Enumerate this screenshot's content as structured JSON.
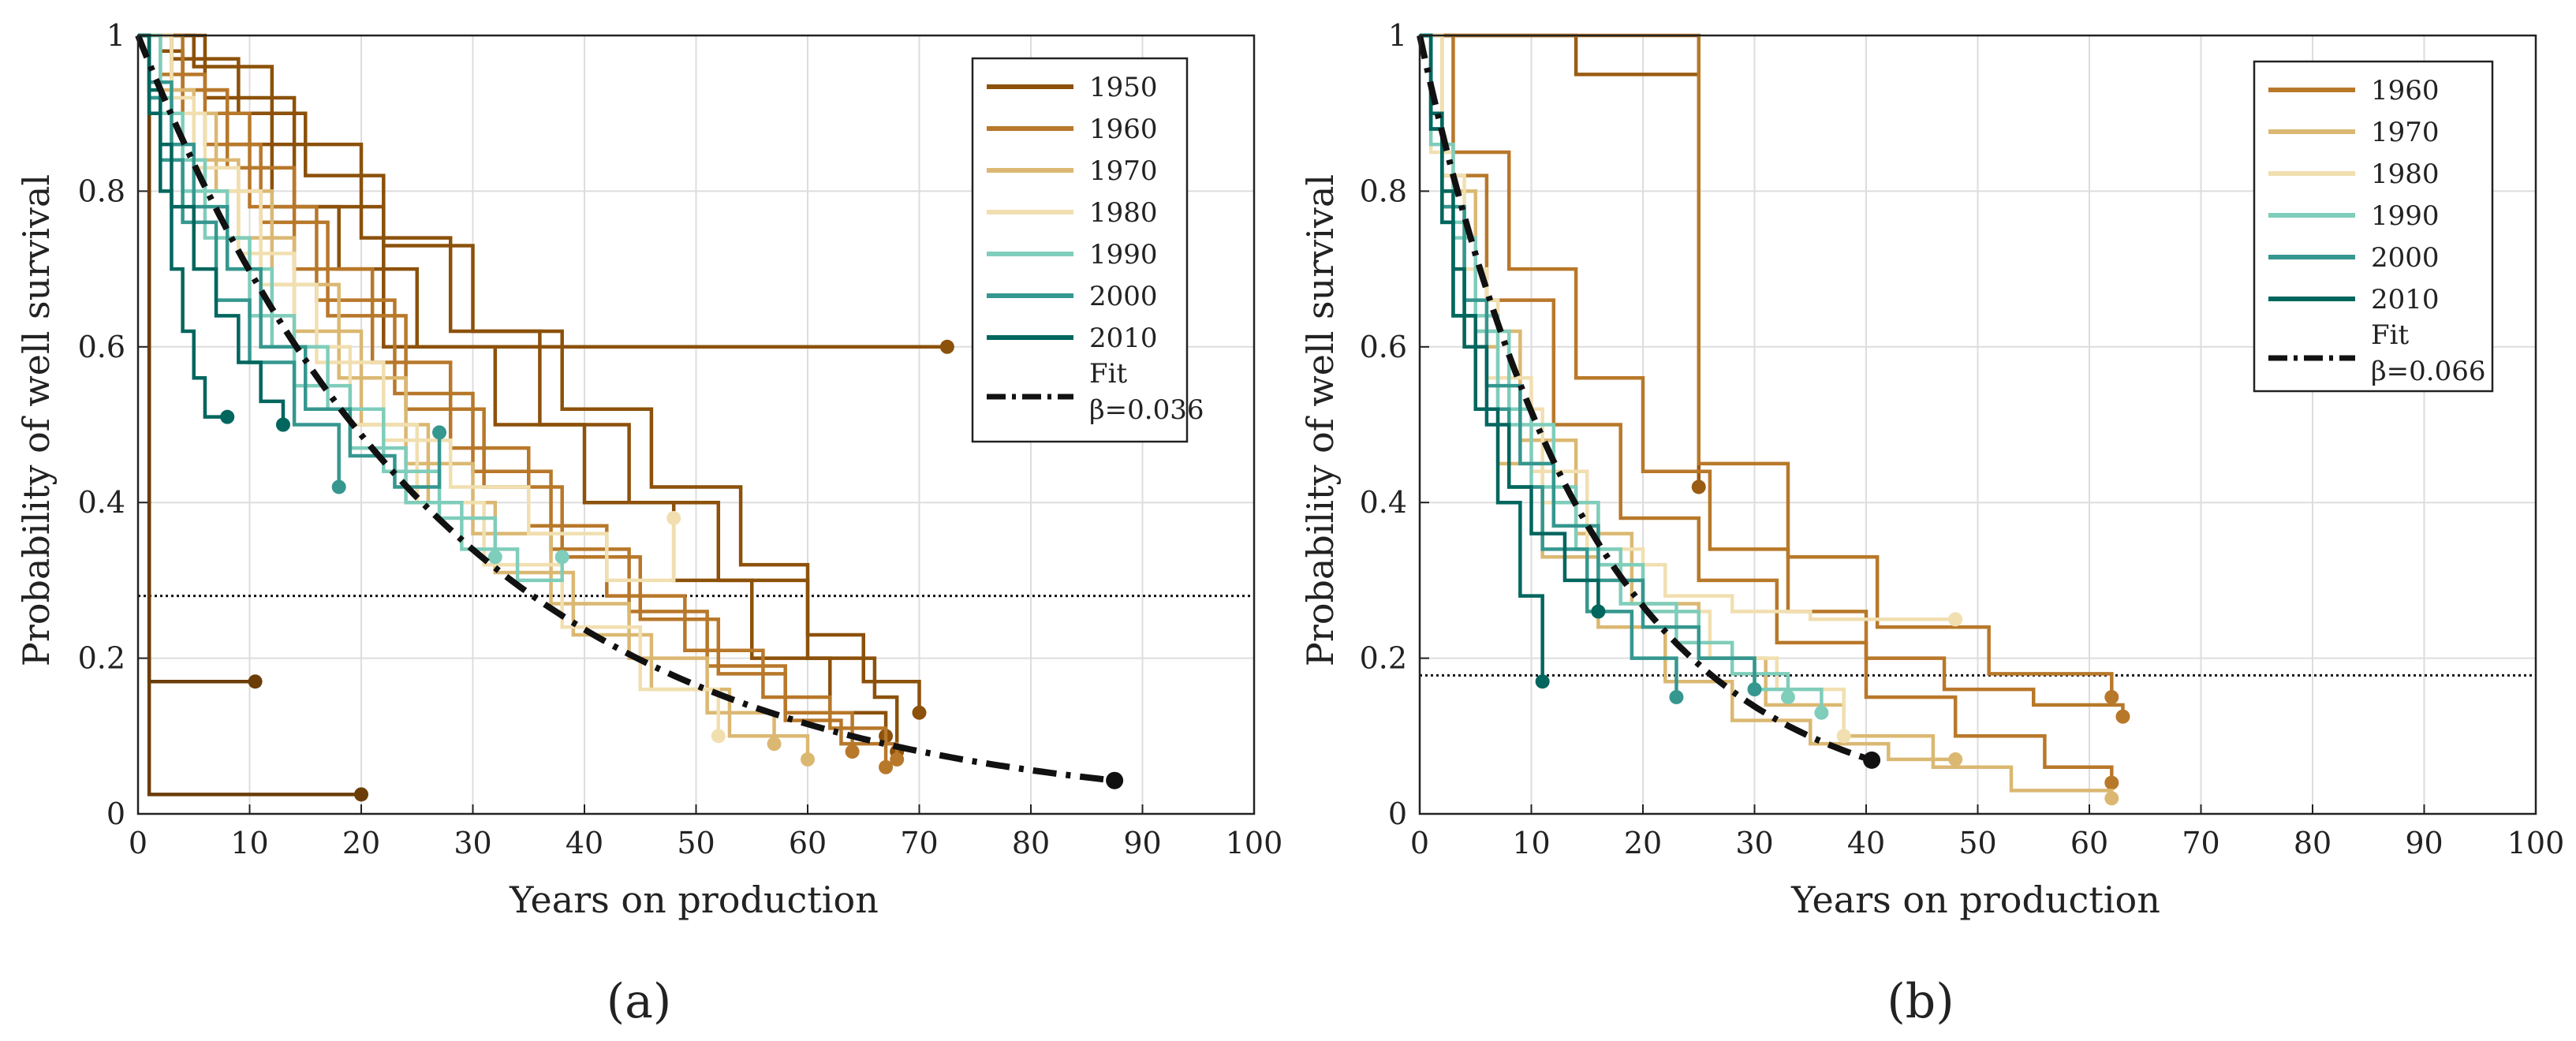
{
  "chart_data": [
    {
      "type": "line",
      "panel_label": "(a)",
      "xlabel": "Years on production",
      "ylabel": "Probability of well survival",
      "xlim": [
        0,
        100
      ],
      "ylim": [
        0,
        1
      ],
      "grid": true,
      "xticks": [
        0,
        10,
        20,
        30,
        40,
        50,
        60,
        70,
        80,
        90,
        100
      ],
      "yticks": [
        0,
        0.2,
        0.4,
        0.6,
        0.8,
        1
      ],
      "ytick_labels": [
        "0",
        "0.2",
        "0.4",
        "0.6",
        "0.8",
        "1"
      ],
      "reference_line_y": 0.28,
      "fit": {
        "label": "Fit",
        "beta_label": "β=0.036",
        "beta": 0.036,
        "x_end": 87.5,
        "color": "#111111"
      },
      "legend": {
        "position": "top-right",
        "entries": [
          {
            "label": "1950",
            "color": "#8c510a"
          },
          {
            "label": "1960",
            "color": "#b8782a"
          },
          {
            "label": "1970",
            "color": "#dbb872"
          },
          {
            "label": "1980",
            "color": "#f1dfb0"
          },
          {
            "label": "1990",
            "color": "#7fcdbb"
          },
          {
            "label": "2000",
            "color": "#35978f"
          },
          {
            "label": "2010",
            "color": "#01665e"
          }
        ]
      },
      "series": [
        {
          "name": "1950",
          "color": "#8c510a",
          "x": [
            0,
            2,
            4,
            8,
            12,
            18,
            25,
            32,
            40,
            48,
            55,
            62,
            67
          ],
          "y": [
            1,
            0.98,
            0.93,
            0.86,
            0.78,
            0.7,
            0.6,
            0.5,
            0.4,
            0.3,
            0.2,
            0.13,
            0.1
          ]
        },
        {
          "name": "1950",
          "color": "#8c510a",
          "x": [
            0,
            3,
            9,
            15,
            22,
            30,
            38,
            46,
            54,
            60,
            65,
            70
          ],
          "y": [
            1,
            0.97,
            0.9,
            0.82,
            0.73,
            0.62,
            0.52,
            0.42,
            0.32,
            0.23,
            0.17,
            0.13
          ]
        },
        {
          "name": "1950",
          "color": "#8c510a",
          "x": [
            0,
            5,
            12,
            20,
            28,
            36,
            44,
            52,
            60,
            66,
            68
          ],
          "y": [
            1,
            0.96,
            0.86,
            0.74,
            0.62,
            0.5,
            0.4,
            0.3,
            0.2,
            0.15,
            0.08
          ]
        },
        {
          "name": "1950",
          "color": "#8c510a",
          "x": [
            0,
            6,
            14,
            22,
            72.5
          ],
          "y": [
            1,
            0.92,
            0.78,
            0.6,
            0.6
          ]
        },
        {
          "name": "1950",
          "color": "#6b3d07",
          "x": [
            0,
            1,
            10.5
          ],
          "y": [
            1,
            0.17,
            0.17
          ]
        },
        {
          "name": "1950",
          "color": "#6b3d07",
          "x": [
            0,
            1,
            20
          ],
          "y": [
            1,
            0.025,
            0.025
          ]
        },
        {
          "name": "1960",
          "color": "#b8782a",
          "x": [
            0,
            2,
            6,
            11,
            17,
            24,
            31,
            38,
            45,
            52,
            58,
            63,
            68
          ],
          "y": [
            1,
            0.95,
            0.86,
            0.76,
            0.64,
            0.52,
            0.42,
            0.33,
            0.25,
            0.18,
            0.12,
            0.09,
            0.07
          ]
        },
        {
          "name": "1960",
          "color": "#b8782a",
          "x": [
            0,
            3,
            8,
            14,
            21,
            28,
            35,
            42,
            49,
            56,
            62,
            67
          ],
          "y": [
            1,
            0.93,
            0.83,
            0.7,
            0.58,
            0.47,
            0.37,
            0.28,
            0.21,
            0.15,
            0.11,
            0.06
          ]
        },
        {
          "name": "1960",
          "color": "#b8782a",
          "x": [
            0,
            4,
            10,
            16,
            23,
            30,
            37,
            44,
            51,
            58,
            64
          ],
          "y": [
            1,
            0.9,
            0.78,
            0.66,
            0.54,
            0.44,
            0.34,
            0.26,
            0.19,
            0.13,
            0.08
          ]
        },
        {
          "name": "1970",
          "color": "#dbb872",
          "x": [
            0,
            2,
            5,
            9,
            14,
            20,
            26,
            32,
            39,
            46,
            53,
            60
          ],
          "y": [
            1,
            0.93,
            0.84,
            0.74,
            0.62,
            0.5,
            0.4,
            0.31,
            0.23,
            0.16,
            0.1,
            0.07
          ]
        },
        {
          "name": "1970",
          "color": "#dbb872",
          "x": [
            0,
            3,
            7,
            12,
            18,
            24,
            30,
            37,
            44,
            51,
            57
          ],
          "y": [
            1,
            0.9,
            0.8,
            0.68,
            0.56,
            0.45,
            0.36,
            0.27,
            0.2,
            0.13,
            0.09
          ]
        },
        {
          "name": "1980",
          "color": "#f1dfb0",
          "x": [
            0,
            2,
            5,
            9,
            14,
            19,
            25,
            31,
            38,
            45,
            52
          ],
          "y": [
            1,
            0.92,
            0.83,
            0.72,
            0.6,
            0.5,
            0.4,
            0.32,
            0.24,
            0.16,
            0.1
          ]
        },
        {
          "name": "1980",
          "color": "#f1dfb0",
          "x": [
            0,
            3,
            6,
            11,
            16,
            22,
            28,
            35,
            42,
            48
          ],
          "y": [
            1,
            0.9,
            0.8,
            0.68,
            0.58,
            0.48,
            0.42,
            0.36,
            0.3,
            0.38
          ]
        },
        {
          "name": "1990",
          "color": "#7fcdbb",
          "x": [
            0,
            1,
            3,
            6,
            10,
            14,
            19,
            24,
            29,
            34,
            38
          ],
          "y": [
            1,
            0.92,
            0.84,
            0.74,
            0.64,
            0.55,
            0.47,
            0.4,
            0.34,
            0.3,
            0.33
          ]
        },
        {
          "name": "1990",
          "color": "#7fcdbb",
          "x": [
            0,
            2,
            4,
            8,
            12,
            17,
            22,
            27,
            32
          ],
          "y": [
            1,
            0.9,
            0.8,
            0.7,
            0.6,
            0.52,
            0.44,
            0.38,
            0.33
          ]
        },
        {
          "name": "2000",
          "color": "#35978f",
          "x": [
            0,
            1,
            3,
            5,
            8,
            11,
            15,
            19,
            23,
            27
          ],
          "y": [
            1,
            0.94,
            0.86,
            0.78,
            0.7,
            0.6,
            0.52,
            0.46,
            0.42,
            0.49
          ]
        },
        {
          "name": "2000",
          "color": "#35978f",
          "x": [
            0,
            1,
            2,
            4,
            7,
            10,
            14,
            18
          ],
          "y": [
            1,
            0.92,
            0.84,
            0.76,
            0.66,
            0.58,
            0.5,
            0.42
          ]
        },
        {
          "name": "2010",
          "color": "#01665e",
          "x": [
            0,
            1,
            2,
            3,
            4,
            5,
            6,
            8
          ],
          "y": [
            1,
            0.9,
            0.8,
            0.7,
            0.62,
            0.56,
            0.51,
            0.51
          ]
        },
        {
          "name": "2010",
          "color": "#01665e",
          "x": [
            0,
            1,
            2,
            3,
            5,
            7,
            9,
            11,
            13
          ],
          "y": [
            1,
            0.93,
            0.86,
            0.78,
            0.7,
            0.64,
            0.58,
            0.53,
            0.5
          ]
        }
      ]
    },
    {
      "type": "line",
      "panel_label": "(b)",
      "xlabel": "Years on production",
      "ylabel": "Probability of well survival",
      "xlim": [
        0,
        100
      ],
      "ylim": [
        0,
        1
      ],
      "grid": true,
      "xticks": [
        0,
        10,
        20,
        30,
        40,
        50,
        60,
        70,
        80,
        90,
        100
      ],
      "yticks": [
        0,
        0.2,
        0.4,
        0.6,
        0.8,
        1
      ],
      "ytick_labels": [
        "0",
        "0.2",
        "0.4",
        "0.6",
        "0.8",
        "1"
      ],
      "reference_line_y": 0.178,
      "fit": {
        "label": "Fit",
        "beta_label": "β=0.066",
        "beta": 0.066,
        "x_end": 40.5,
        "color": "#111111"
      },
      "legend": {
        "position": "top-right",
        "entries": [
          {
            "label": "1960",
            "color": "#b8782a"
          },
          {
            "label": "1970",
            "color": "#dbb872"
          },
          {
            "label": "1980",
            "color": "#f1dfb0"
          },
          {
            "label": "1990",
            "color": "#7fcdbb"
          },
          {
            "label": "2000",
            "color": "#35978f"
          },
          {
            "label": "2010",
            "color": "#01665e"
          }
        ]
      },
      "series": [
        {
          "name": "1960",
          "color": "#9a5b12",
          "x": [
            0,
            1,
            14,
            14,
            25,
            25
          ],
          "y": [
            1,
            1,
            1,
            0.95,
            0.95,
            0.42
          ]
        },
        {
          "name": "1960",
          "color": "#b8782a",
          "x": [
            0,
            1,
            25,
            25,
            33,
            41,
            51,
            62
          ],
          "y": [
            1,
            1,
            1,
            0.45,
            0.33,
            0.24,
            0.18,
            0.15
          ]
        },
        {
          "name": "1960",
          "color": "#b8782a",
          "x": [
            0,
            3,
            8,
            14,
            20,
            26,
            33,
            40,
            47,
            55,
            63
          ],
          "y": [
            1,
            0.85,
            0.7,
            0.56,
            0.44,
            0.34,
            0.26,
            0.2,
            0.16,
            0.14,
            0.125
          ]
        },
        {
          "name": "1960",
          "color": "#b8782a",
          "x": [
            0,
            2,
            6,
            12,
            18,
            25,
            32,
            40,
            48,
            56,
            62
          ],
          "y": [
            1,
            0.82,
            0.66,
            0.5,
            0.38,
            0.3,
            0.22,
            0.15,
            0.1,
            0.06,
            0.04
          ]
        },
        {
          "name": "1970",
          "color": "#dbb872",
          "x": [
            0,
            2,
            5,
            9,
            14,
            19,
            25,
            31,
            38,
            46,
            53,
            62
          ],
          "y": [
            1,
            0.8,
            0.62,
            0.48,
            0.36,
            0.27,
            0.2,
            0.14,
            0.1,
            0.06,
            0.03,
            0.02
          ]
        },
        {
          "name": "1970",
          "color": "#dbb872",
          "x": [
            0,
            2,
            4,
            7,
            11,
            16,
            22,
            28,
            35,
            42,
            48
          ],
          "y": [
            1,
            0.78,
            0.6,
            0.45,
            0.33,
            0.24,
            0.17,
            0.12,
            0.09,
            0.07,
            0.07
          ]
        },
        {
          "name": "1980",
          "color": "#f1dfb0",
          "x": [
            0,
            2,
            4,
            7,
            11,
            16,
            22,
            28,
            35,
            42,
            48
          ],
          "y": [
            1,
            0.82,
            0.66,
            0.52,
            0.4,
            0.32,
            0.28,
            0.26,
            0.25,
            0.25,
            0.25
          ]
        },
        {
          "name": "1980",
          "color": "#f1dfb0",
          "x": [
            0,
            1,
            3,
            6,
            10,
            15,
            20,
            26,
            32,
            38
          ],
          "y": [
            1,
            0.85,
            0.7,
            0.56,
            0.44,
            0.34,
            0.26,
            0.2,
            0.16,
            0.1
          ]
        },
        {
          "name": "1990",
          "color": "#7fcdbb",
          "x": [
            0,
            1,
            3,
            5,
            8,
            12,
            16,
            20,
            25,
            30,
            36
          ],
          "y": [
            1,
            0.86,
            0.74,
            0.62,
            0.5,
            0.4,
            0.32,
            0.26,
            0.2,
            0.16,
            0.13
          ]
        },
        {
          "name": "1990",
          "color": "#7fcdbb",
          "x": [
            0,
            1,
            2,
            4,
            7,
            10,
            14,
            18,
            23,
            28,
            33
          ],
          "y": [
            1,
            0.88,
            0.76,
            0.64,
            0.52,
            0.42,
            0.34,
            0.27,
            0.22,
            0.18,
            0.15
          ]
        },
        {
          "name": "2000",
          "color": "#35978f",
          "x": [
            0,
            1,
            2,
            4,
            6,
            9,
            12,
            16,
            20,
            25,
            30
          ],
          "y": [
            1,
            0.9,
            0.78,
            0.66,
            0.55,
            0.45,
            0.37,
            0.3,
            0.24,
            0.2,
            0.16
          ]
        },
        {
          "name": "2000",
          "color": "#35978f",
          "x": [
            0,
            1,
            2,
            3,
            5,
            8,
            11,
            15,
            19,
            23
          ],
          "y": [
            1,
            0.88,
            0.76,
            0.64,
            0.52,
            0.42,
            0.34,
            0.26,
            0.2,
            0.15
          ]
        },
        {
          "name": "2010",
          "color": "#01665e",
          "x": [
            0,
            1,
            2,
            3,
            4,
            6,
            8,
            10,
            13,
            16
          ],
          "y": [
            1,
            0.9,
            0.8,
            0.7,
            0.6,
            0.5,
            0.42,
            0.36,
            0.3,
            0.26
          ]
        },
        {
          "name": "2010",
          "color": "#01665e",
          "x": [
            0,
            1,
            2,
            3,
            5,
            7,
            9,
            11
          ],
          "y": [
            1,
            0.88,
            0.76,
            0.64,
            0.52,
            0.4,
            0.28,
            0.17
          ]
        }
      ]
    }
  ]
}
